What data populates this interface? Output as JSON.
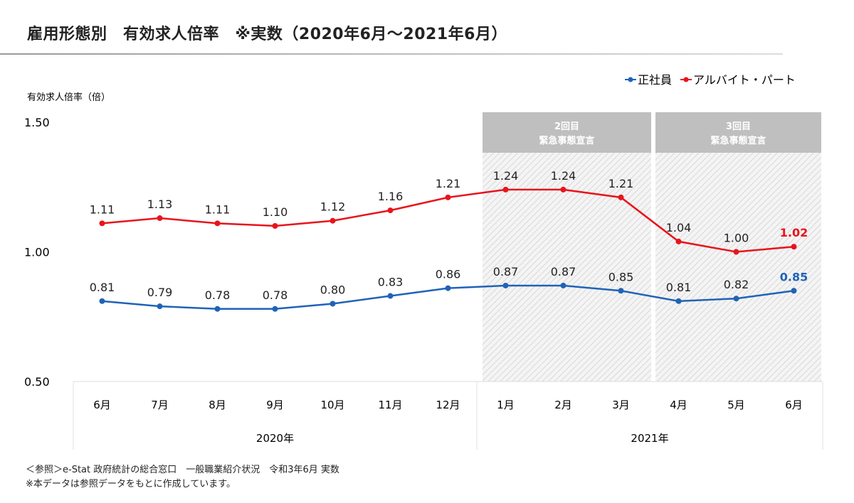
{
  "title": "雇用形態別　有効求人倍率　※実数（2020年6月～2021年6月）",
  "notes": [
    "＜参照＞e-Stat 政府統計の総合窓口　一般職業紹介状況　令和3年6月 実数",
    "※本データは参照データをもとに作成しています。"
  ],
  "chart_data": {
    "type": "line",
    "ylabel": "有効求人倍率（倍）",
    "ylim": [
      0.5,
      1.5
    ],
    "yticks": [
      "0.50",
      "1.00",
      "1.50"
    ],
    "categories": [
      "6月",
      "7月",
      "8月",
      "9月",
      "10月",
      "11月",
      "12月",
      "1月",
      "2月",
      "3月",
      "4月",
      "5月",
      "6月"
    ],
    "year_groups": [
      {
        "label": "2020年",
        "from": 0,
        "to": 6
      },
      {
        "label": "2021年",
        "from": 7,
        "to": 12
      }
    ],
    "legend_position": "top-right",
    "series": [
      {
        "name": "正社員",
        "color": "#1f63b8",
        "values": [
          0.81,
          0.79,
          0.78,
          0.78,
          0.8,
          0.83,
          0.86,
          0.87,
          0.87,
          0.85,
          0.81,
          0.82,
          0.85
        ]
      },
      {
        "name": "アルバイト・パート",
        "color": "#e8141b",
        "values": [
          1.11,
          1.13,
          1.11,
          1.1,
          1.12,
          1.16,
          1.21,
          1.24,
          1.24,
          1.21,
          1.04,
          1.0,
          1.02
        ]
      }
    ],
    "annotations": [
      {
        "label_line1": "2回目",
        "label_line2": "緊急事態宣言",
        "from": 7,
        "to": 9
      },
      {
        "label_line1": "3回目",
        "label_line2": "緊急事態宣言",
        "from": 10,
        "to": 12
      }
    ]
  }
}
